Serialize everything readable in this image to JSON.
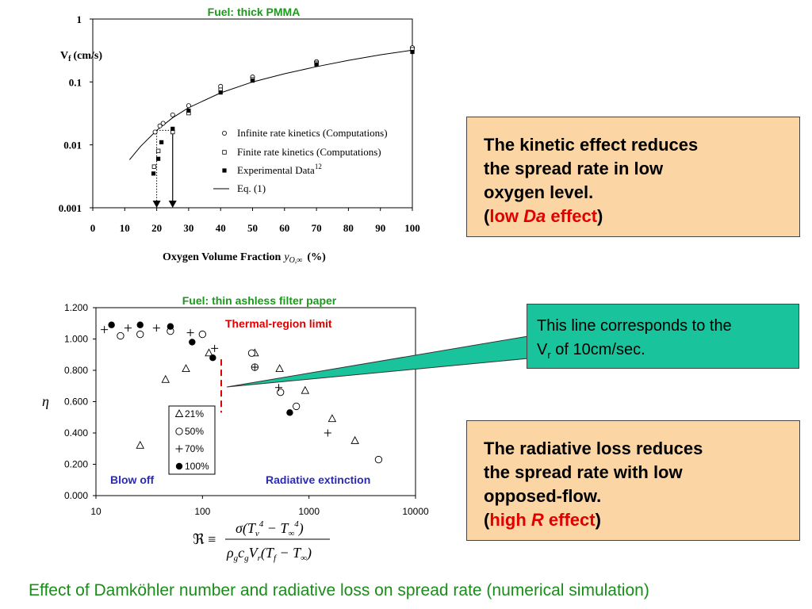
{
  "chart_data": [
    {
      "type": "scatter",
      "title": "Fuel: thick PMMA",
      "ylabel_main": "V",
      "ylabel_sub": "f",
      "ylabel_unit": "(cm/s)",
      "xlabel_text": "Oxygen Volume Fraction",
      "xlabel_var": "y",
      "xlabel_sub": "O,∞",
      "xlabel_unit": "(%)",
      "x_ticks": [
        "0",
        "10",
        "20",
        "30",
        "40",
        "50",
        "60",
        "70",
        "80",
        "90",
        "100"
      ],
      "y_ticks": [
        "1",
        "0.1",
        "0.01",
        "0.001"
      ],
      "xlim": [
        0,
        100
      ],
      "ylim": [
        0.001,
        1
      ],
      "yscale": "log",
      "legend": [
        {
          "label": "Infinite rate kinetics (Computations)",
          "marker": "open-circle"
        },
        {
          "label": "Finite rate kinetics (Computations)",
          "marker": "open-square"
        },
        {
          "label": "Experimental Data",
          "sup": "12",
          "marker": "filled-square"
        },
        {
          "label": "Eq. (1)",
          "marker": "line"
        }
      ],
      "series": [
        {
          "name": "Infinite rate kinetics (Computations)",
          "points": [
            [
              19.5,
              0.016
            ],
            [
              21,
              0.02
            ],
            [
              22,
              0.022
            ],
            [
              25,
              0.03
            ],
            [
              30,
              0.042
            ],
            [
              40,
              0.085
            ],
            [
              50,
              0.12
            ],
            [
              70,
              0.21
            ],
            [
              100,
              0.35
            ]
          ]
        },
        {
          "name": "Finite rate kinetics (Computations)",
          "points": [
            [
              19.2,
              0.0045
            ],
            [
              20.5,
              0.008
            ],
            [
              25,
              0.016
            ],
            [
              30,
              0.032
            ],
            [
              40,
              0.075
            ],
            [
              50,
              0.11
            ],
            [
              70,
              0.2
            ],
            [
              100,
              0.33
            ]
          ]
        },
        {
          "name": "Experimental Data",
          "points": [
            [
              19,
              0.0035
            ],
            [
              20.5,
              0.006
            ],
            [
              21.5,
              0.011
            ],
            [
              25,
              0.018
            ],
            [
              30,
              0.035
            ],
            [
              40,
              0.068
            ],
            [
              50,
              0.105
            ],
            [
              70,
              0.19
            ],
            [
              100,
              0.3
            ]
          ]
        },
        {
          "name": "Eq. (1)",
          "points": [
            [
              11.5,
              0.0058
            ],
            [
              15,
              0.0095
            ],
            [
              20,
              0.017
            ],
            [
              25,
              0.027
            ],
            [
              30,
              0.039
            ],
            [
              40,
              0.067
            ],
            [
              50,
              0.1
            ],
            [
              60,
              0.135
            ],
            [
              70,
              0.175
            ],
            [
              80,
              0.22
            ],
            [
              90,
              0.27
            ],
            [
              100,
              0.32
            ]
          ]
        }
      ],
      "arrows": [
        {
          "x": 20,
          "from": 0.017,
          "to": 0.001,
          "style": "dotted"
        },
        {
          "x": 25,
          "from": 0.018,
          "to": 0.001,
          "style": "solid"
        }
      ]
    },
    {
      "type": "scatter",
      "title": "Fuel: thin ashless filter paper",
      "ylabel": "η",
      "xscale": "log",
      "xlim": [
        10,
        10000
      ],
      "ylim": [
        0,
        1.2
      ],
      "x_ticks": [
        "10",
        "100",
        "1000",
        "10000"
      ],
      "y_ticks": [
        "1.200",
        "1.000",
        "0.800",
        "0.600",
        "0.400",
        "0.200",
        "0.000"
      ],
      "legend": [
        {
          "label": "21%",
          "marker": "triangle"
        },
        {
          "label": "50%",
          "marker": "open-circle"
        },
        {
          "label": "70%",
          "marker": "plus"
        },
        {
          "label": "100%",
          "marker": "filled-circle"
        }
      ],
      "series": [
        {
          "name": "21%",
          "points": [
            [
              26,
              0.32
            ],
            [
              45,
              0.74
            ],
            [
              70,
              0.81
            ],
            [
              115,
              0.91
            ],
            [
              310,
              0.91
            ],
            [
              530,
              0.81
            ],
            [
              920,
              0.67
            ],
            [
              1650,
              0.49
            ],
            [
              2700,
              0.35
            ]
          ]
        },
        {
          "name": "50%",
          "points": [
            [
              17,
              1.02
            ],
            [
              26,
              1.03
            ],
            [
              50,
              1.05
            ],
            [
              100,
              1.03
            ],
            [
              290,
              0.91
            ],
            [
              310,
              0.82
            ],
            [
              540,
              0.66
            ],
            [
              760,
              0.57
            ],
            [
              4500,
              0.23
            ]
          ]
        },
        {
          "name": "70%",
          "points": [
            [
              12,
              1.06
            ],
            [
              20,
              1.07
            ],
            [
              37,
              1.07
            ],
            [
              77,
              1.04
            ],
            [
              130,
              0.94
            ],
            [
              310,
              0.82
            ],
            [
              520,
              0.69
            ],
            [
              1500,
              0.4
            ]
          ]
        },
        {
          "name": "100%",
          "points": [
            [
              14,
              1.09
            ],
            [
              26,
              1.09
            ],
            [
              50,
              1.08
            ],
            [
              80,
              0.98
            ],
            [
              125,
              0.88
            ],
            [
              660,
              0.53
            ]
          ]
        }
      ],
      "annotations": {
        "limit_label": "Thermal-region limit",
        "limit_x": 150,
        "left_label": "Blow off",
        "right_label": "Radiative extinction"
      },
      "formula": "ℜ ≡ σ(T_v^4 − T_∞^4) / (ρ_g c_g V_r (T_f − T_∞))"
    }
  ],
  "boxes": {
    "kinetic": {
      "line1": "The kinetic effect reduces",
      "line2": "the spread rate in low",
      "line3": "oxygen level.",
      "open": "(",
      "low": "low ",
      "da": "Da",
      "effect": " effect",
      "close": ")"
    },
    "callout": {
      "line1": "This line corresponds to the",
      "v": "V",
      "sub": "r",
      "rest": " of 10cm/sec."
    },
    "radiative": {
      "line1": "The radiative loss reduces",
      "line2": "the spread rate with low",
      "line3": "opposed-flow.",
      "open": "(",
      "high": "high ",
      "r": "R",
      "effect": " effect",
      "close": ")"
    }
  },
  "caption": "Effect of Damköhler number and radiative loss on spread rate (numerical simulation)",
  "colors": {
    "title_green": "#1a9a1a",
    "box_orange": "#fcd5a4",
    "callout_teal": "#19c39b",
    "limit_red": "#e00000",
    "label_blue": "#2a2ab8"
  }
}
